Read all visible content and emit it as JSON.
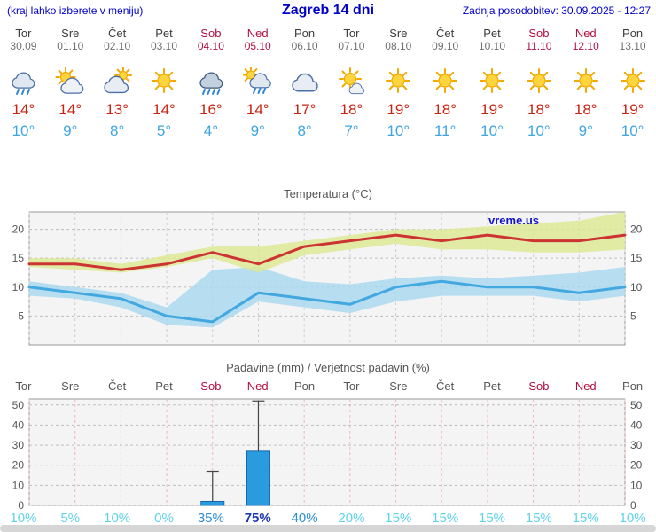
{
  "header": {
    "note": "(kraj lahko izberete v meniju)",
    "title": "Zagreb 14 dni",
    "updated": "Zadnja posodobitev: 30.09.2025 - 12:27"
  },
  "colors": {
    "accent_blue": "#0000cc",
    "tmax_red": "#cc2211",
    "tmin_blue": "#3fa5e0",
    "weekend_red": "#b01040",
    "bar_blue": "#2b9be0",
    "prob_low": "#5fd2ea",
    "prob_mid": "#2e8fd6",
    "prob_high": "#1f3bb3"
  },
  "days": [
    {
      "name": "Tor",
      "date": "30.09",
      "weekend": false,
      "icon": "rain",
      "tmax": "14°",
      "tmin": "10°",
      "prob": "10%",
      "prob_level": "low"
    },
    {
      "name": "Sre",
      "date": "01.10",
      "weekend": false,
      "icon": "sun-cloud",
      "tmax": "14°",
      "tmin": "9°",
      "prob": "5%",
      "prob_level": "low"
    },
    {
      "name": "Čet",
      "date": "02.10",
      "weekend": false,
      "icon": "cloud-sun",
      "tmax": "13°",
      "tmin": "8°",
      "prob": "10%",
      "prob_level": "low"
    },
    {
      "name": "Pet",
      "date": "03.10",
      "weekend": false,
      "icon": "sun",
      "tmax": "14°",
      "tmin": "5°",
      "prob": "0%",
      "prob_level": "low"
    },
    {
      "name": "Sob",
      "date": "04.10",
      "weekend": true,
      "icon": "rain-heavy",
      "tmax": "16°",
      "tmin": "4°",
      "prob": "35%",
      "prob_level": "mid"
    },
    {
      "name": "Ned",
      "date": "05.10",
      "weekend": true,
      "icon": "sun-rain",
      "tmax": "14°",
      "tmin": "9°",
      "prob": "75%",
      "prob_level": "high"
    },
    {
      "name": "Pon",
      "date": "06.10",
      "weekend": false,
      "icon": "cloud",
      "tmax": "17°",
      "tmin": "8°",
      "prob": "40%",
      "prob_level": "mid"
    },
    {
      "name": "Tor",
      "date": "07.10",
      "weekend": false,
      "icon": "sun-small-cloud",
      "tmax": "18°",
      "tmin": "7°",
      "prob": "20%",
      "prob_level": "low"
    },
    {
      "name": "Sre",
      "date": "08.10",
      "weekend": false,
      "icon": "sun",
      "tmax": "19°",
      "tmin": "10°",
      "prob": "15%",
      "prob_level": "low"
    },
    {
      "name": "Čet",
      "date": "09.10",
      "weekend": false,
      "icon": "sun",
      "tmax": "18°",
      "tmin": "11°",
      "prob": "15%",
      "prob_level": "low"
    },
    {
      "name": "Pet",
      "date": "10.10",
      "weekend": false,
      "icon": "sun",
      "tmax": "19°",
      "tmin": "10°",
      "prob": "15%",
      "prob_level": "low"
    },
    {
      "name": "Sob",
      "date": "11.10",
      "weekend": true,
      "icon": "sun",
      "tmax": "18°",
      "tmin": "10°",
      "prob": "15%",
      "prob_level": "low"
    },
    {
      "name": "Ned",
      "date": "12.10",
      "weekend": true,
      "icon": "sun",
      "tmax": "18°",
      "tmin": "9°",
      "prob": "15%",
      "prob_level": "low"
    },
    {
      "name": "Pon",
      "date": "13.10",
      "weekend": false,
      "icon": "sun",
      "tmax": "19°",
      "tmin": "10°",
      "prob": "10%",
      "prob_level": "low"
    }
  ],
  "chart_data": [
    {
      "type": "area",
      "title": "Temperatura (°C)",
      "watermark": "vreme.us",
      "x_labels": [
        "Tor",
        "Sre",
        "Čet",
        "Pet",
        "Sob",
        "Ned",
        "Pon",
        "Tor",
        "Sre",
        "Čet",
        "Pet",
        "Sob",
        "Ned",
        "Pon"
      ],
      "yticks": [
        5,
        10,
        15,
        20
      ],
      "ylim": [
        0,
        23
      ],
      "grid": true,
      "legend": "none",
      "series": [
        {
          "name": "tmax",
          "color": "#cc3333",
          "band_color": "#dce98f",
          "values": [
            14,
            14,
            13,
            14,
            16,
            14,
            17,
            18,
            19,
            18,
            19,
            18,
            18,
            19
          ],
          "band_upper": [
            15,
            15,
            14,
            15.5,
            17,
            17,
            18,
            19,
            20,
            20,
            20.5,
            21,
            21.5,
            23
          ],
          "band_lower": [
            13.5,
            13,
            12.5,
            13.5,
            15,
            12.5,
            15.5,
            16.5,
            17.5,
            16.5,
            16.5,
            16,
            16,
            16.5
          ]
        },
        {
          "name": "tmin",
          "color": "#44a8e0",
          "band_color": "#a8d8ef",
          "values": [
            10,
            9,
            8,
            5,
            4,
            9,
            8,
            7,
            10,
            11,
            10,
            10,
            9,
            10
          ],
          "band_upper": [
            11,
            10,
            9,
            6.5,
            13,
            13.5,
            11,
            10.5,
            11.5,
            12,
            11.5,
            12,
            12.5,
            13.5
          ],
          "band_lower": [
            8.5,
            8,
            6.5,
            3.5,
            3,
            7.5,
            6.5,
            5.5,
            7.5,
            8.5,
            8.5,
            8.5,
            7.5,
            8.5
          ]
        }
      ]
    },
    {
      "type": "bar",
      "title": "Padavine (mm) / Verjetnost padavin (%)",
      "categories": [
        "Tor",
        "Sre",
        "Čet",
        "Pet",
        "Sob",
        "Ned",
        "Pon",
        "Tor",
        "Sre",
        "Čet",
        "Pet",
        "Sob",
        "Ned",
        "Pon"
      ],
      "values": [
        0,
        0,
        0,
        0,
        2,
        27,
        0,
        0,
        0,
        0,
        0,
        0,
        0,
        0
      ],
      "whisker_max": [
        0,
        0,
        0,
        0,
        17,
        52,
        0,
        0,
        0,
        0,
        0,
        0,
        0,
        0
      ],
      "probabilities": [
        "10%",
        "5%",
        "10%",
        "0%",
        "35%",
        "75%",
        "40%",
        "20%",
        "15%",
        "15%",
        "15%",
        "15%",
        "15%",
        "10%"
      ],
      "yticks": [
        0,
        10,
        20,
        30,
        40,
        50
      ],
      "ylim": [
        0,
        53
      ],
      "grid": true
    }
  ]
}
